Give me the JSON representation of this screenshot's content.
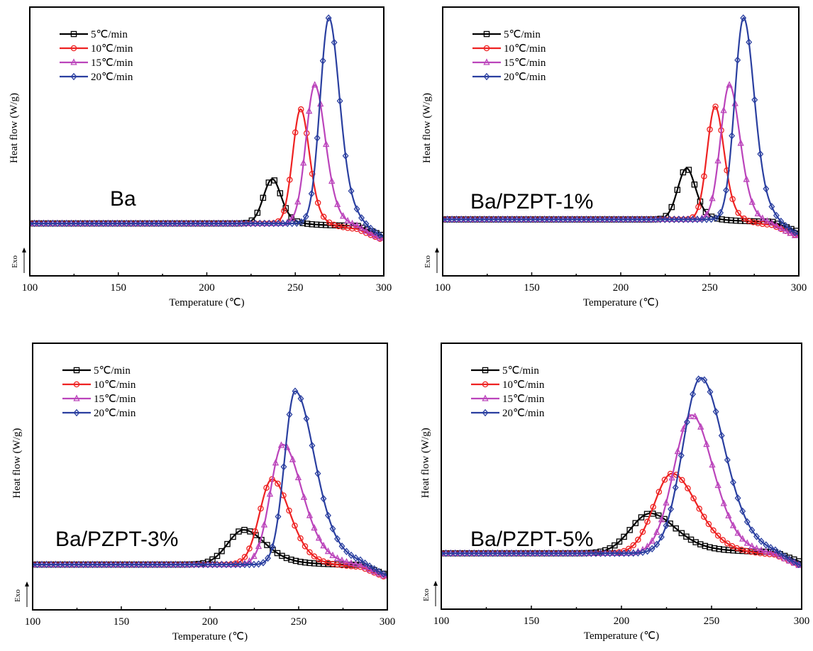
{
  "chart_data": [
    {
      "type": "line",
      "sample_label": "Ba",
      "xlabel": "Temperature (℃)",
      "ylabel": "Heat flow (W/g)",
      "exo_label": "Exo",
      "xlim": [
        100,
        300
      ],
      "ylim": [
        0,
        1
      ],
      "xticks": [
        100,
        150,
        200,
        250,
        300
      ],
      "legend_position": "top-left",
      "grid": false,
      "series": [
        {
          "name": "5℃/min",
          "color": "#000000",
          "marker": "square",
          "peak_x": 237,
          "peak_y": 0.36,
          "base_y": 0.195,
          "end_y": 0.185,
          "rise_w": 5,
          "fall_w": 5
        },
        {
          "name": "10℃/min",
          "color": "#ee2222",
          "marker": "circle",
          "peak_x": 253,
          "peak_y": 0.62,
          "base_y": 0.195,
          "end_y": 0.165,
          "rise_w": 4.5,
          "fall_w": 5
        },
        {
          "name": "15℃/min",
          "color": "#bb44bb",
          "marker": "triangle",
          "peak_x": 261,
          "peak_y": 0.71,
          "base_y": 0.195,
          "end_y": 0.16,
          "rise_w": 5,
          "fall_w": 6
        },
        {
          "name": "20℃/min",
          "color": "#2a3fa0",
          "marker": "diamond",
          "peak_x": 269,
          "peak_y": 0.96,
          "base_y": 0.195,
          "end_y": 0.155,
          "rise_w": 5,
          "fall_w": 6
        }
      ]
    },
    {
      "type": "line",
      "sample_label": "Ba/PZPT-1%",
      "xlabel": "Temperature (℃)",
      "ylabel": "Heat flow (W/g)",
      "exo_label": "Exo",
      "xlim": [
        100,
        300
      ],
      "ylim": [
        0,
        1
      ],
      "xticks": [
        100,
        150,
        200,
        250,
        300
      ],
      "legend_position": "top-left",
      "grid": false,
      "series": [
        {
          "name": "5℃/min",
          "color": "#000000",
          "marker": "square",
          "peak_x": 237,
          "peak_y": 0.4,
          "base_y": 0.21,
          "end_y": 0.2,
          "rise_w": 5,
          "fall_w": 5
        },
        {
          "name": "10℃/min",
          "color": "#ee2222",
          "marker": "circle",
          "peak_x": 253,
          "peak_y": 0.63,
          "base_y": 0.21,
          "end_y": 0.18,
          "rise_w": 4.5,
          "fall_w": 5
        },
        {
          "name": "15℃/min",
          "color": "#bb44bb",
          "marker": "triangle",
          "peak_x": 261,
          "peak_y": 0.71,
          "base_y": 0.21,
          "end_y": 0.17,
          "rise_w": 5,
          "fall_w": 6
        },
        {
          "name": "20℃/min",
          "color": "#2a3fa0",
          "marker": "diamond",
          "peak_x": 269,
          "peak_y": 0.96,
          "base_y": 0.21,
          "end_y": 0.165,
          "rise_w": 5,
          "fall_w": 6
        }
      ]
    },
    {
      "type": "line",
      "sample_label": "Ba/PZPT-3%",
      "xlabel": "Temperature (℃)",
      "ylabel": "Heat flow (W/g)",
      "exo_label": "Exo",
      "xlim": [
        100,
        300
      ],
      "ylim": [
        0,
        1
      ],
      "xticks": [
        100,
        150,
        200,
        250,
        300
      ],
      "legend_position": "top-left",
      "grid": false,
      "series": [
        {
          "name": "5℃/min",
          "color": "#000000",
          "marker": "square",
          "peak_x": 219,
          "peak_y": 0.3,
          "base_y": 0.17,
          "end_y": 0.165,
          "rise_w": 9,
          "fall_w": 12
        },
        {
          "name": "10℃/min",
          "color": "#ee2222",
          "marker": "circle",
          "peak_x": 235,
          "peak_y": 0.49,
          "base_y": 0.17,
          "end_y": 0.15,
          "rise_w": 7,
          "fall_w": 10
        },
        {
          "name": "15℃/min",
          "color": "#bb44bb",
          "marker": "triangle",
          "peak_x": 241,
          "peak_y": 0.62,
          "base_y": 0.17,
          "end_y": 0.145,
          "rise_w": 7,
          "fall_w": 11
        },
        {
          "name": "20℃/min",
          "color": "#2a3fa0",
          "marker": "diamond",
          "peak_x": 248,
          "peak_y": 0.82,
          "base_y": 0.17,
          "end_y": 0.14,
          "rise_w": 6,
          "fall_w": 11
        }
      ]
    },
    {
      "type": "line",
      "sample_label": "Ba/PZPT-5%",
      "xlabel": "Temperature (℃)",
      "ylabel": "Heat flow (W/g)",
      "exo_label": "Exo",
      "xlim": [
        100,
        300
      ],
      "ylim": [
        0,
        1
      ],
      "xticks": [
        100,
        150,
        200,
        250,
        300
      ],
      "legend_position": "top-left",
      "grid": false,
      "series": [
        {
          "name": "5℃/min",
          "color": "#000000",
          "marker": "square",
          "peak_x": 216,
          "peak_y": 0.36,
          "base_y": 0.21,
          "end_y": 0.21,
          "rise_w": 11,
          "fall_w": 14
        },
        {
          "name": "10℃/min",
          "color": "#ee2222",
          "marker": "circle",
          "peak_x": 228,
          "peak_y": 0.51,
          "base_y": 0.21,
          "end_y": 0.19,
          "rise_w": 10,
          "fall_w": 14
        },
        {
          "name": "15℃/min",
          "color": "#bb44bb",
          "marker": "triangle",
          "peak_x": 239,
          "peak_y": 0.73,
          "base_y": 0.21,
          "end_y": 0.18,
          "rise_w": 10,
          "fall_w": 12
        },
        {
          "name": "20℃/min",
          "color": "#2a3fa0",
          "marker": "diamond",
          "peak_x": 244,
          "peak_y": 0.87,
          "base_y": 0.21,
          "end_y": 0.17,
          "rise_w": 10,
          "fall_w": 13
        }
      ]
    }
  ]
}
